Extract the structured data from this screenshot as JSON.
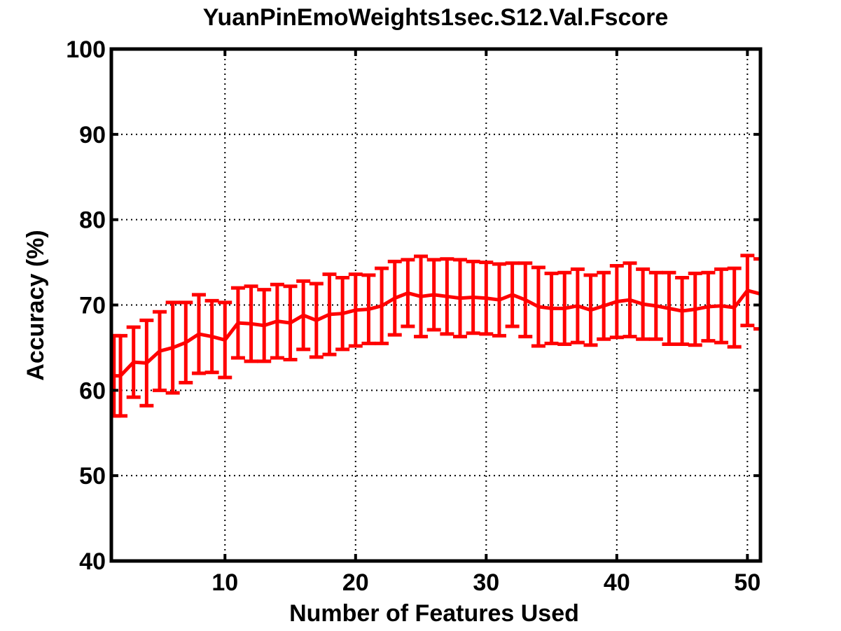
{
  "chart_data": {
    "type": "line",
    "title": "YuanPinEmoWeights1sec.S12.Val.Fscore",
    "xlabel": "Number of Features Used",
    "ylabel": "Accuracy (%)",
    "xlim": [
      1.3,
      51
    ],
    "ylim": [
      40,
      100
    ],
    "xticks": [
      10,
      20,
      30,
      40,
      50
    ],
    "yticks": [
      40,
      50,
      60,
      70,
      80,
      90,
      100
    ],
    "grid": true,
    "legend": "none",
    "series": [
      {
        "name": "Fscore",
        "color": "#ff0000",
        "x": [
          1.5,
          2,
          3,
          4,
          5,
          6,
          7,
          8,
          9,
          10,
          11,
          12,
          13,
          14,
          15,
          16,
          17,
          18,
          19,
          20,
          21,
          22,
          23,
          24,
          25,
          26,
          27,
          28,
          29,
          30,
          31,
          32,
          33,
          34,
          35,
          36,
          37,
          38,
          39,
          40,
          41,
          42,
          43,
          44,
          45,
          46,
          47,
          48,
          49,
          50,
          51
        ],
        "mean": [
          61.7,
          61.7,
          63.3,
          63.2,
          64.6,
          65.0,
          65.6,
          66.6,
          66.3,
          65.9,
          67.9,
          67.8,
          67.6,
          68.1,
          67.9,
          68.8,
          68.2,
          68.9,
          69.0,
          69.4,
          69.5,
          69.9,
          70.8,
          71.4,
          71.0,
          71.2,
          71.0,
          70.8,
          70.9,
          70.8,
          70.6,
          71.2,
          70.6,
          69.8,
          69.6,
          69.6,
          69.9,
          69.4,
          69.9,
          70.4,
          70.6,
          70.1,
          69.9,
          69.6,
          69.3,
          69.5,
          69.8,
          69.9,
          69.7,
          71.7,
          71.3
        ],
        "err": [
          4.7,
          4.7,
          4.1,
          5.0,
          4.6,
          5.3,
          4.7,
          4.6,
          4.2,
          4.4,
          4.1,
          4.4,
          4.2,
          4.3,
          4.3,
          4.0,
          4.3,
          4.7,
          4.2,
          4.2,
          4.0,
          4.4,
          4.3,
          3.9,
          4.7,
          4.1,
          4.4,
          4.5,
          4.2,
          4.2,
          4.2,
          3.7,
          4.3,
          4.6,
          4.1,
          4.2,
          4.3,
          4.1,
          3.9,
          4.2,
          4.3,
          4.1,
          3.9,
          4.2,
          3.9,
          4.2,
          4.0,
          4.3,
          4.6,
          4.1,
          4.1
        ]
      }
    ]
  }
}
